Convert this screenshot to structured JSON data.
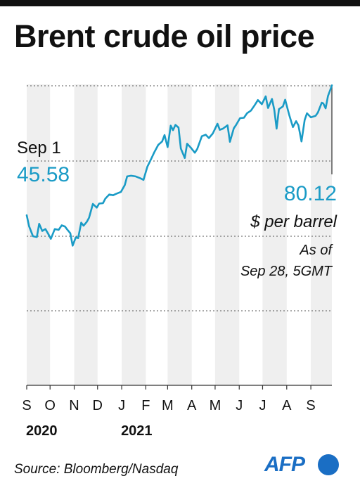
{
  "title": "Brent crude oil price",
  "source": "Source: Bloomberg/Nasdaq",
  "logo_text": "AFP",
  "colors": {
    "line": "#1a9bc6",
    "band": "#efefef",
    "grid": "#555555",
    "text": "#111111",
    "logo": "#1a6ec4"
  },
  "chart_data": {
    "type": "line",
    "title": "Brent crude oil price",
    "ylabel": "",
    "xlabel": "",
    "unit": "$ per barrel",
    "ylim": [
      20,
      80
    ],
    "grid": true,
    "x_ticks": [
      "S",
      "O",
      "N",
      "D",
      "J",
      "F",
      "M",
      "A",
      "M",
      "J",
      "J",
      "A",
      "S"
    ],
    "year_labels": [
      {
        "text": "2020",
        "month_index": 0
      },
      {
        "text": "2021",
        "month_index": 4
      }
    ],
    "start_annotation": {
      "label": "Sep 1",
      "value": "45.58"
    },
    "end_annotation": {
      "value": "80.12",
      "unit": "$ per barrel",
      "note_line1": "As of",
      "note_line2": "Sep 28, 5GMT"
    },
    "series": [
      {
        "points": [
          [
            "2020-09-01",
            45.58
          ],
          [
            "2020-09-04",
            42.7
          ],
          [
            "2020-09-09",
            40.0
          ],
          [
            "2020-09-14",
            39.8
          ],
          [
            "2020-09-17",
            43.3
          ],
          [
            "2020-09-21",
            41.4
          ],
          [
            "2020-09-25",
            41.9
          ],
          [
            "2020-09-29",
            40.5
          ],
          [
            "2020-10-02",
            39.3
          ],
          [
            "2020-10-07",
            41.9
          ],
          [
            "2020-10-12",
            41.7
          ],
          [
            "2020-10-16",
            42.9
          ],
          [
            "2020-10-20",
            42.6
          ],
          [
            "2020-10-23",
            41.8
          ],
          [
            "2020-10-27",
            40.8
          ],
          [
            "2020-10-30",
            37.5
          ],
          [
            "2020-11-03",
            39.7
          ],
          [
            "2020-11-06",
            39.5
          ],
          [
            "2020-11-10",
            43.6
          ],
          [
            "2020-11-13",
            42.8
          ],
          [
            "2020-11-17",
            43.8
          ],
          [
            "2020-11-20",
            44.9
          ],
          [
            "2020-11-25",
            48.6
          ],
          [
            "2020-11-30",
            47.6
          ],
          [
            "2020-12-03",
            48.7
          ],
          [
            "2020-12-08",
            48.8
          ],
          [
            "2020-12-11",
            50.0
          ],
          [
            "2020-12-16",
            51.1
          ],
          [
            "2020-12-21",
            50.9
          ],
          [
            "2020-12-24",
            51.2
          ],
          [
            "2020-12-31",
            51.8
          ],
          [
            "2021-01-05",
            53.6
          ],
          [
            "2021-01-08",
            55.9
          ],
          [
            "2021-01-13",
            56.1
          ],
          [
            "2021-01-19",
            55.9
          ],
          [
            "2021-01-25",
            55.4
          ],
          [
            "2021-01-29",
            55.0
          ],
          [
            "2021-02-03",
            58.5
          ],
          [
            "2021-02-08",
            60.6
          ],
          [
            "2021-02-12",
            62.4
          ],
          [
            "2021-02-17",
            64.3
          ],
          [
            "2021-02-22",
            65.2
          ],
          [
            "2021-02-25",
            66.9
          ],
          [
            "2021-03-01",
            63.7
          ],
          [
            "2021-03-05",
            69.4
          ],
          [
            "2021-03-08",
            68.2
          ],
          [
            "2021-03-11",
            69.6
          ],
          [
            "2021-03-15",
            68.9
          ],
          [
            "2021-03-18",
            63.3
          ],
          [
            "2021-03-23",
            60.8
          ],
          [
            "2021-03-26",
            64.6
          ],
          [
            "2021-03-31",
            63.5
          ],
          [
            "2021-04-05",
            62.2
          ],
          [
            "2021-04-08",
            63.2
          ],
          [
            "2021-04-14",
            66.6
          ],
          [
            "2021-04-19",
            67.0
          ],
          [
            "2021-04-23",
            66.1
          ],
          [
            "2021-04-28",
            67.3
          ],
          [
            "2021-05-04",
            69.9
          ],
          [
            "2021-05-07",
            68.3
          ],
          [
            "2021-05-11",
            68.6
          ],
          [
            "2021-05-17",
            69.5
          ],
          [
            "2021-05-20",
            65.1
          ],
          [
            "2021-05-25",
            68.7
          ],
          [
            "2021-05-28",
            69.6
          ],
          [
            "2021-06-02",
            71.4
          ],
          [
            "2021-06-07",
            71.5
          ],
          [
            "2021-06-11",
            72.7
          ],
          [
            "2021-06-16",
            73.4
          ],
          [
            "2021-06-21",
            74.9
          ],
          [
            "2021-06-25",
            76.2
          ],
          [
            "2021-06-30",
            75.1
          ],
          [
            "2021-07-05",
            77.2
          ],
          [
            "2021-07-08",
            74.1
          ],
          [
            "2021-07-13",
            76.5
          ],
          [
            "2021-07-16",
            73.6
          ],
          [
            "2021-07-19",
            68.6
          ],
          [
            "2021-07-22",
            73.8
          ],
          [
            "2021-07-27",
            74.5
          ],
          [
            "2021-07-30",
            76.3
          ],
          [
            "2021-08-04",
            72.4
          ],
          [
            "2021-08-09",
            69.0
          ],
          [
            "2021-08-13",
            70.6
          ],
          [
            "2021-08-16",
            69.5
          ],
          [
            "2021-08-20",
            65.2
          ],
          [
            "2021-08-24",
            70.9
          ],
          [
            "2021-08-27",
            72.7
          ],
          [
            "2021-09-01",
            71.6
          ],
          [
            "2021-09-07",
            72.0
          ],
          [
            "2021-09-10",
            72.9
          ],
          [
            "2021-09-15",
            75.5
          ],
          [
            "2021-09-17",
            75.3
          ],
          [
            "2021-09-20",
            74.0
          ],
          [
            "2021-09-23",
            77.3
          ],
          [
            "2021-09-27",
            79.5
          ],
          [
            "2021-09-28",
            80.12
          ]
        ]
      }
    ]
  }
}
